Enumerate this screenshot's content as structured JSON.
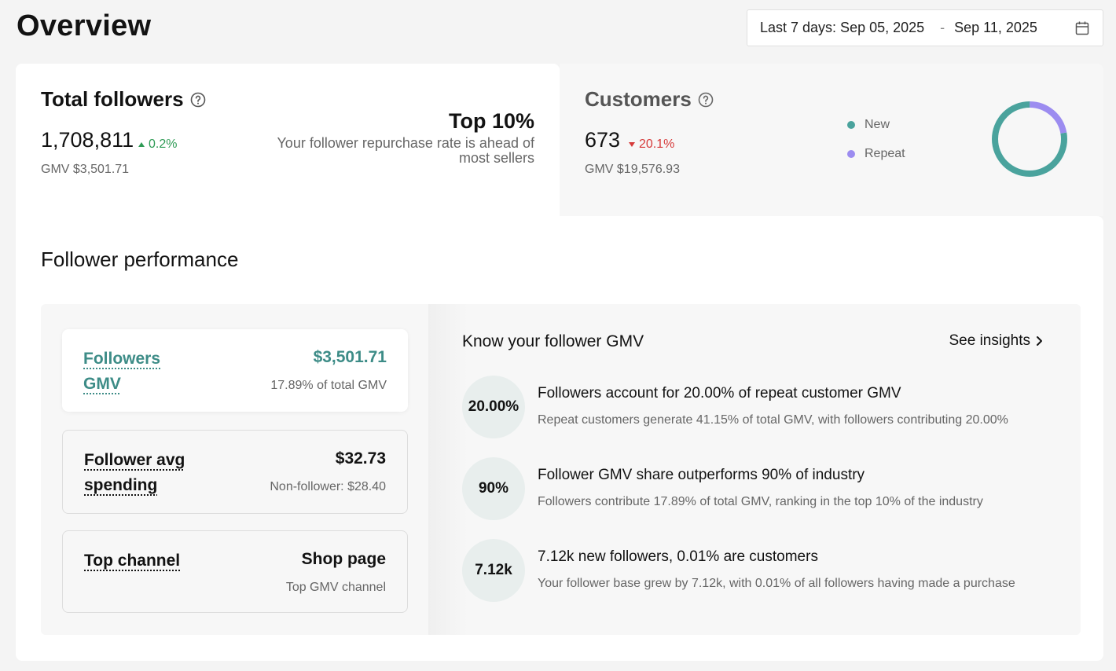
{
  "header": {
    "title": "Overview",
    "date_range": {
      "start": "Last 7 days: Sep 05, 2025",
      "separator": "-",
      "end": "Sep 11, 2025",
      "icon": "calendar-icon"
    }
  },
  "followers_card": {
    "title": "Total followers",
    "value": "1,708,811",
    "delta": "0.2%",
    "delta_direction": "up",
    "gmv": "GMV $3,501.71",
    "badge_title": "Top 10%",
    "badge_text": "Your follower repurchase rate is ahead of most sellers"
  },
  "customers_card": {
    "title": "Customers",
    "value": "673",
    "delta": "20.1%",
    "delta_direction": "down",
    "gmv": "GMV $19,576.93",
    "legend": [
      {
        "label": "New",
        "color": "#4aa39d"
      },
      {
        "label": "Repeat",
        "color": "#9c8cf0"
      }
    ],
    "donut": {
      "new_share": 0.78,
      "repeat_share": 0.22
    }
  },
  "performance": {
    "title": "Follower performance",
    "metrics": [
      {
        "label": "Followers GMV",
        "value": "$3,501.71",
        "sub": "17.89% of total GMV"
      },
      {
        "label": "Follower avg spending",
        "value": "$32.73",
        "sub": "Non-follower: $28.40"
      },
      {
        "label": "Top channel",
        "value": "Shop page",
        "sub": "Top GMV channel"
      }
    ],
    "insights": {
      "title": "Know your follower GMV",
      "link": "See insights",
      "items": [
        {
          "badge": "20.00%",
          "heading": "Followers account for 20.00% of repeat customer GMV",
          "text": "Repeat customers generate 41.15% of total GMV, with followers contributing 20.00%"
        },
        {
          "badge": "90%",
          "heading": "Follower GMV share outperforms 90% of industry",
          "text": "Followers contribute 17.89% of total GMV, ranking in the top 10% of the industry"
        },
        {
          "badge": "7.12k",
          "heading": "7.12k new followers, 0.01% are customers",
          "text": "Your follower base grew by 7.12k, with 0.01% of all followers having made a purchase"
        }
      ]
    }
  },
  "colors": {
    "accent": "#3d8c87",
    "up": "#2e9b55",
    "down": "#d63a3a"
  }
}
